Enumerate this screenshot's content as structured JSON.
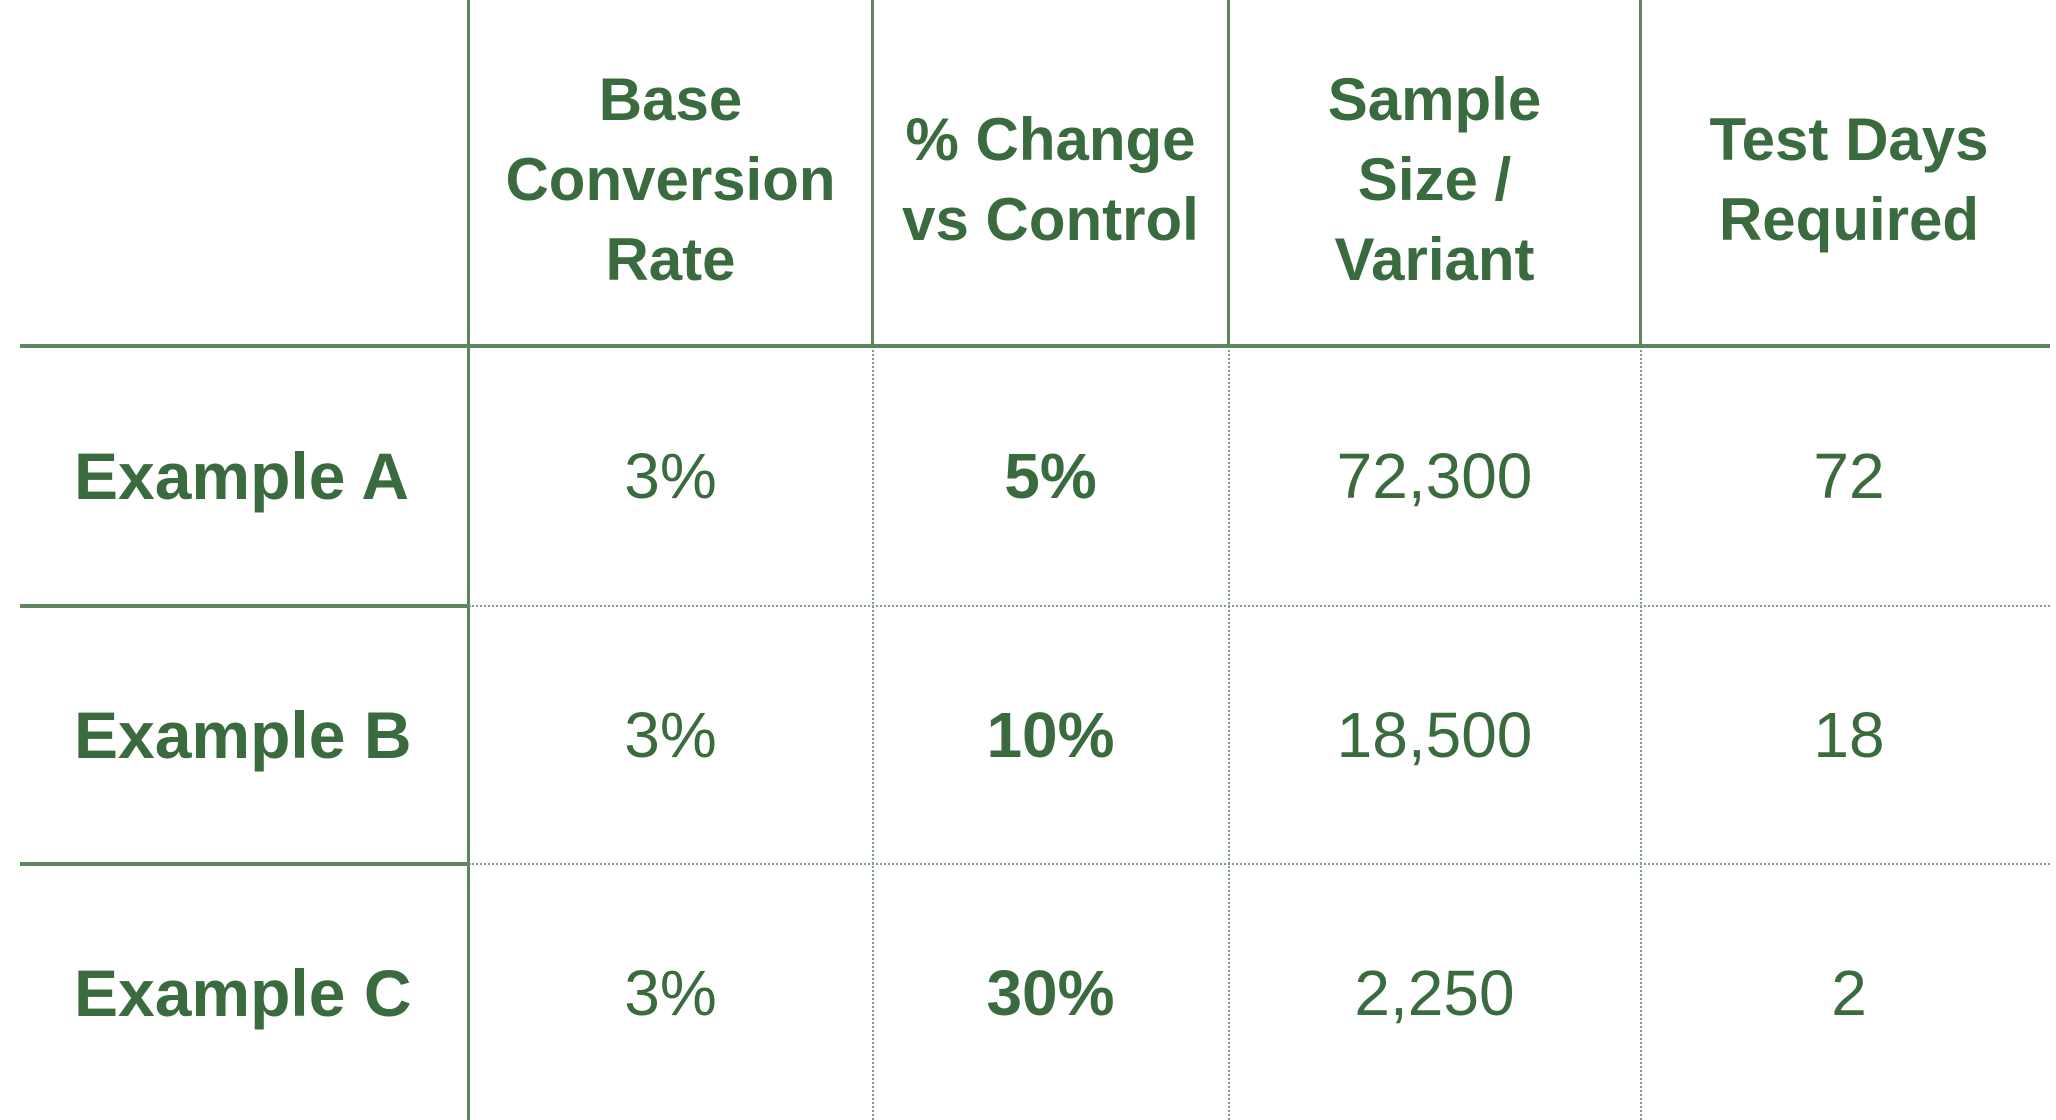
{
  "table": {
    "columns": [
      "",
      "Base\nConversion\nRate",
      "% Change\nvs Control",
      "Sample\nSize /\nVariant",
      "Test Days\nRequired"
    ],
    "rows": [
      {
        "label": "Example A",
        "cells": [
          "3%",
          "5%",
          "72,300",
          "72"
        ]
      },
      {
        "label": "Example B",
        "cells": [
          "3%",
          "10%",
          "18,500",
          "18"
        ]
      },
      {
        "label": "Example C",
        "cells": [
          "3%",
          "30%",
          "2,250",
          "2"
        ]
      }
    ],
    "bold_column_index": 1
  },
  "colors": {
    "text": "#3a6b3e",
    "rule": "#5c8560"
  }
}
